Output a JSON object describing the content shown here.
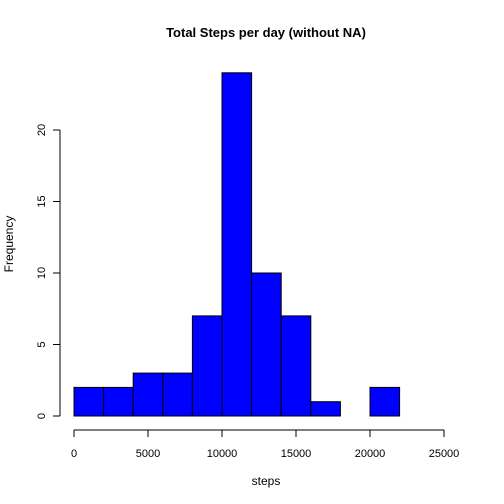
{
  "chart_data": {
    "type": "bar",
    "title": "Total Steps per day (without NA)",
    "xlabel": "steps",
    "ylabel": "Frequency",
    "bin_width": 2000,
    "bins": [
      {
        "start": 0,
        "end": 2000,
        "count": 2
      },
      {
        "start": 2000,
        "end": 4000,
        "count": 2
      },
      {
        "start": 4000,
        "end": 6000,
        "count": 3
      },
      {
        "start": 6000,
        "end": 8000,
        "count": 3
      },
      {
        "start": 8000,
        "end": 10000,
        "count": 7
      },
      {
        "start": 10000,
        "end": 12000,
        "count": 24
      },
      {
        "start": 12000,
        "end": 14000,
        "count": 10
      },
      {
        "start": 14000,
        "end": 16000,
        "count": 7
      },
      {
        "start": 16000,
        "end": 18000,
        "count": 1
      },
      {
        "start": 18000,
        "end": 20000,
        "count": 0
      },
      {
        "start": 20000,
        "end": 22000,
        "count": 2
      },
      {
        "start": 22000,
        "end": 24000,
        "count": 0
      },
      {
        "start": 24000,
        "end": 26000,
        "count": 0
      }
    ],
    "xlim": [
      0,
      26000
    ],
    "ylim": [
      0,
      24
    ],
    "x_ticks": [
      0,
      5000,
      10000,
      15000,
      20000,
      25000
    ],
    "y_ticks": [
      0,
      5,
      10,
      15,
      20
    ],
    "bar_color": "#0000ff",
    "grid": false,
    "legend": "none"
  }
}
